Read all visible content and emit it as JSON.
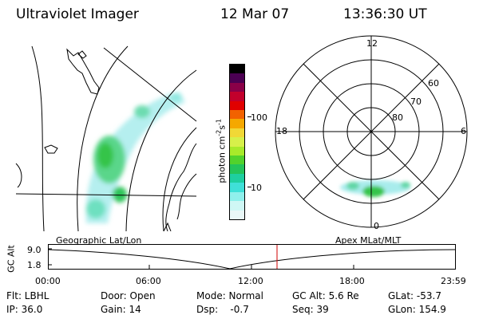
{
  "header": {
    "instrument": "Ultraviolet Imager",
    "date": "12 Mar 07",
    "time": "13:36:30 UT"
  },
  "geo_panel": {
    "label": "Geographic Lat/Lon"
  },
  "polar_panel": {
    "label": "Apex MLat/MLT",
    "mlt_labels": {
      "top": "12",
      "left": "18",
      "right": "6",
      "bottom": "0"
    },
    "lat_labels": [
      "60",
      "70",
      "80"
    ]
  },
  "colorbar": {
    "unit_label": "photon cm",
    "unit_sup1": "-2",
    "unit_s": "s",
    "unit_sup2": "-1",
    "ticks": [
      "100",
      "10"
    ],
    "colors": [
      "#000000",
      "#4b0052",
      "#8a0048",
      "#c2002c",
      "#e00000",
      "#f26200",
      "#f5a800",
      "#f1d836",
      "#d7f04a",
      "#a8ea2a",
      "#52d22c",
      "#24c45a",
      "#1ecfa0",
      "#3fe0d8",
      "#8ff0ec",
      "#cff7f5",
      "#e9f7f7"
    ]
  },
  "altitude_chart": {
    "ylabel": "GC Alt",
    "yticks": [
      "9.0",
      "1.8"
    ],
    "xticks": [
      "00:00",
      "06:00",
      "12:00",
      "18:00",
      "23:59"
    ],
    "current_time_marker": "13:36"
  },
  "status": {
    "row1": [
      {
        "key": "flt",
        "text": "Flt: LBHL"
      },
      {
        "key": "door",
        "text": "Door: Open"
      },
      {
        "key": "mode",
        "text": "Mode: Normal"
      },
      {
        "key": "gcalt",
        "text": "GC Alt: 5.6 Re"
      },
      {
        "key": "glat",
        "text": "GLat: -53.7"
      }
    ],
    "row2": [
      {
        "key": "ip",
        "text": "IP: 36.0"
      },
      {
        "key": "gain",
        "text": "Gain: 14"
      },
      {
        "key": "dsp",
        "text": "Dsp:    -0.7"
      },
      {
        "key": "seq",
        "text": "Seq: 39"
      },
      {
        "key": "glon",
        "text": "GLon: 154.9"
      }
    ]
  }
}
